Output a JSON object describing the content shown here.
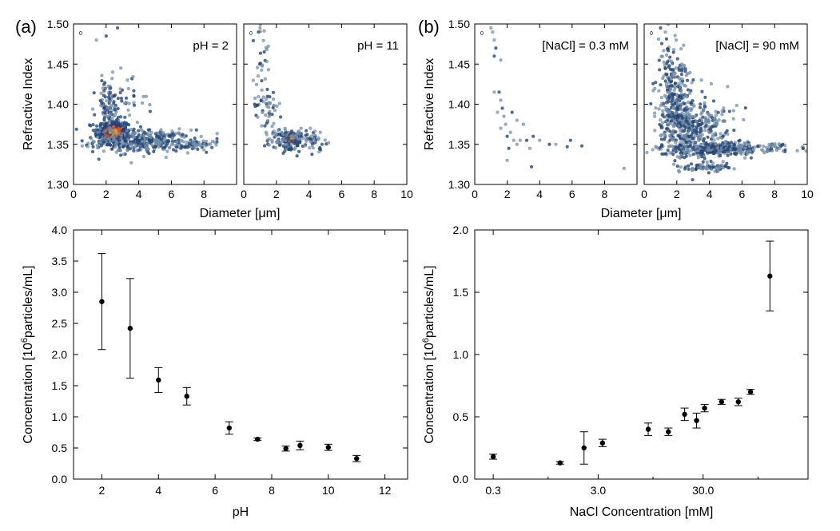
{
  "panel_labels": [
    "(a)",
    "(b)"
  ],
  "chart_data": [
    {
      "id": "a-ph2",
      "type": "scatter",
      "annotation": "pH = 2",
      "corner_label": "0",
      "ylabel": "Refractive Index",
      "xlim": [
        0,
        10
      ],
      "ylim": [
        1.3,
        1.5
      ],
      "x_ticks": [
        0,
        2,
        4,
        6,
        8
      ],
      "y_ticks": [
        "1.30",
        "1.35",
        "1.40",
        "1.45",
        "1.50"
      ],
      "clusters": [
        {
          "x": 2.4,
          "y": 1.365,
          "sx": 0.55,
          "sy": 0.008,
          "n": 260,
          "hot": true
        },
        {
          "x": 4.3,
          "y": 1.354,
          "sx": 1.5,
          "sy": 0.007,
          "n": 380
        },
        {
          "x": 7.4,
          "y": 1.349,
          "sx": 0.55,
          "sy": 0.003,
          "n": 50
        },
        {
          "x": 2.1,
          "y": 1.395,
          "sx": 0.35,
          "sy": 0.017,
          "n": 90
        },
        {
          "x": 2.9,
          "y": 1.4,
          "sx": 0.8,
          "sy": 0.014,
          "n": 40
        }
      ],
      "points": [
        [
          1.4,
          1.48
        ],
        [
          2.0,
          1.485
        ],
        [
          2.7,
          1.495
        ],
        [
          2.4,
          1.44
        ],
        [
          2.9,
          1.445
        ],
        [
          3.3,
          1.43
        ],
        [
          1.8,
          1.42
        ],
        [
          3.7,
          1.41
        ],
        [
          8.8,
          1.357
        ],
        [
          8.3,
          1.35
        ]
      ]
    },
    {
      "id": "a-ph11",
      "type": "scatter",
      "annotation": "pH = 11",
      "corner_label": "0",
      "xlim": [
        0,
        10
      ],
      "ylim": [
        1.3,
        1.5
      ],
      "x_ticks": [
        0,
        2,
        4,
        6,
        8,
        10
      ],
      "clusters": [
        {
          "x": 2.8,
          "y": 1.357,
          "sx": 0.35,
          "sy": 0.005,
          "n": 70,
          "hot": true
        },
        {
          "x": 3.2,
          "y": 1.357,
          "sx": 0.9,
          "sy": 0.008,
          "n": 140
        },
        {
          "x": 1.5,
          "y": 1.39,
          "sx": 0.35,
          "sy": 0.02,
          "n": 50
        },
        {
          "x": 1.1,
          "y": 1.45,
          "sx": 0.25,
          "sy": 0.025,
          "n": 30
        }
      ],
      "points": [
        [
          1.0,
          1.495
        ],
        [
          0.9,
          1.49
        ],
        [
          4.8,
          1.35
        ],
        [
          5.2,
          1.352
        ],
        [
          4.3,
          1.362
        ]
      ]
    },
    {
      "id": "b-nacl03",
      "type": "scatter",
      "annotation": "[NaCl] = 0.3 mM",
      "corner_label": "0",
      "ylabel": "Refractive Index",
      "xlim": [
        0,
        10
      ],
      "ylim": [
        1.3,
        1.5
      ],
      "x_ticks": [
        0,
        2,
        4,
        6,
        8
      ],
      "y_ticks": [
        "1.30",
        "1.35",
        "1.40",
        "1.45",
        "1.50"
      ],
      "clusters": [],
      "points": [
        [
          1.1,
          1.49
        ],
        [
          1.2,
          1.48
        ],
        [
          1.3,
          1.47
        ],
        [
          1.2,
          1.46
        ],
        [
          1.0,
          1.495
        ],
        [
          1.6,
          1.455
        ],
        [
          1.2,
          1.415
        ],
        [
          1.5,
          1.415
        ],
        [
          1.6,
          1.405
        ],
        [
          1.4,
          1.39
        ],
        [
          1.7,
          1.395
        ],
        [
          1.8,
          1.385
        ],
        [
          2.3,
          1.39
        ],
        [
          1.9,
          1.375
        ],
        [
          1.6,
          1.37
        ],
        [
          2.6,
          1.38
        ],
        [
          3.0,
          1.375
        ],
        [
          2.2,
          1.365
        ],
        [
          2.0,
          1.36
        ],
        [
          2.4,
          1.355
        ],
        [
          2.8,
          1.355
        ],
        [
          3.2,
          1.355
        ],
        [
          3.6,
          1.36
        ],
        [
          3.4,
          1.345
        ],
        [
          2.6,
          1.35
        ],
        [
          2.1,
          1.345
        ],
        [
          4.0,
          1.355
        ],
        [
          4.6,
          1.35
        ],
        [
          5.0,
          1.35
        ],
        [
          5.9,
          1.355
        ],
        [
          6.6,
          1.348
        ],
        [
          5.7,
          1.347
        ],
        [
          9.2,
          1.32
        ],
        [
          3.5,
          1.322
        ],
        [
          2.0,
          1.33
        ]
      ]
    },
    {
      "id": "b-nacl90",
      "type": "scatter",
      "annotation": "[NaCl] = 90 mM",
      "corner_label": "0",
      "xlim": [
        0,
        10
      ],
      "ylim": [
        1.3,
        1.5
      ],
      "x_ticks": [
        0,
        2,
        4,
        6,
        8,
        10
      ],
      "clusters": [
        {
          "x": 4.3,
          "y": 1.344,
          "sx": 0.5,
          "sy": 0.0025,
          "n": 140,
          "hot": true
        },
        {
          "x": 5.2,
          "y": 1.345,
          "sx": 1.9,
          "sy": 0.004,
          "n": 260
        },
        {
          "x": 2.0,
          "y": 1.395,
          "sx": 0.55,
          "sy": 0.03,
          "n": 340
        },
        {
          "x": 3.3,
          "y": 1.37,
          "sx": 1.0,
          "sy": 0.02,
          "n": 300
        },
        {
          "x": 3.7,
          "y": 1.321,
          "sx": 0.9,
          "sy": 0.003,
          "n": 70
        },
        {
          "x": 1.4,
          "y": 1.45,
          "sx": 0.3,
          "sy": 0.025,
          "n": 40
        }
      ],
      "points": [
        [
          1.0,
          1.495
        ],
        [
          1.3,
          1.49
        ],
        [
          8.3,
          1.345
        ],
        [
          8.5,
          1.35
        ],
        [
          7.6,
          1.342
        ]
      ]
    },
    {
      "id": "a-conc",
      "type": "scatter",
      "xlabel": "pH",
      "ylabel": "Concentration [10",
      "ylabel_sup": "6",
      "ylabel_tail": "particles/mL]",
      "xlim": [
        1,
        12.8
      ],
      "ylim": [
        0,
        4.0
      ],
      "x_ticks": [
        "2",
        "4",
        "6",
        "8",
        "10",
        "12"
      ],
      "y_ticks": [
        "0.0",
        "0.5",
        "1.0",
        "1.5",
        "2.0",
        "2.5",
        "3.0",
        "3.5",
        "4.0"
      ],
      "x": [
        2,
        3,
        4,
        5,
        6.5,
        7.5,
        8.5,
        9,
        10,
        11
      ],
      "y": [
        2.85,
        2.42,
        1.59,
        1.33,
        0.82,
        0.64,
        0.49,
        0.54,
        0.51,
        0.33
      ],
      "yerr": [
        0.77,
        0.8,
        0.2,
        0.14,
        0.1,
        0.02,
        0.04,
        0.07,
        0.05,
        0.05
      ]
    },
    {
      "id": "b-conc",
      "type": "scatter",
      "xlabel": "NaCl Concentration [mM]",
      "ylabel": "Concentration [10",
      "ylabel_sup": "6",
      "ylabel_tail": "particles/mL]",
      "x_scale": "log",
      "xlim": [
        0.2,
        300
      ],
      "ylim": [
        0,
        2.0
      ],
      "x_ticks": [
        "0.3",
        "3.0",
        "30.0"
      ],
      "y_ticks": [
        "0.0",
        "0.5",
        "1.0",
        "1.5",
        "2.0"
      ],
      "x": [
        0.3,
        1.3,
        2.2,
        3.3,
        9.0,
        14,
        20,
        26,
        31,
        45,
        65,
        85,
        130
      ],
      "y": [
        0.18,
        0.13,
        0.25,
        0.29,
        0.4,
        0.38,
        0.52,
        0.47,
        0.57,
        0.62,
        0.62,
        0.7,
        1.63
      ],
      "yerr": [
        0.02,
        0.01,
        0.13,
        0.03,
        0.05,
        0.03,
        0.05,
        0.06,
        0.03,
        0.02,
        0.03,
        0.02,
        0.28
      ]
    }
  ]
}
